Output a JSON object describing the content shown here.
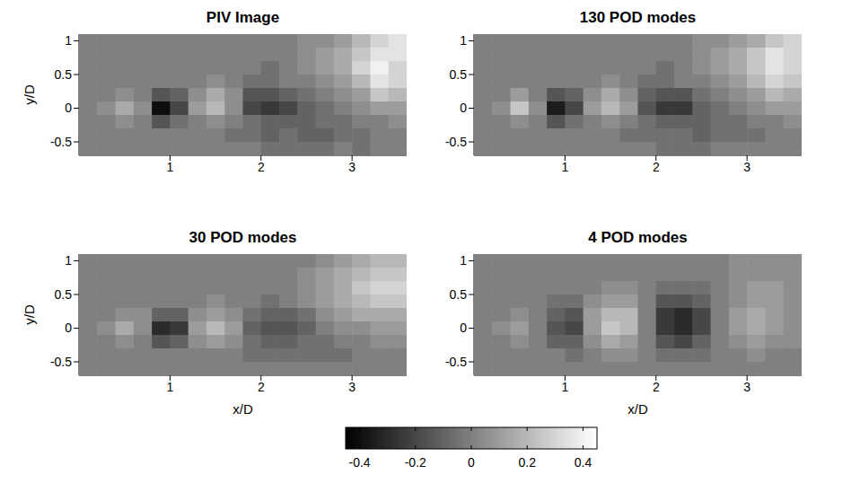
{
  "chart_data": [
    {
      "type": "heatmap",
      "title": "PIV Image",
      "ylabel": "y/D",
      "x": [
        0.1,
        0.3,
        0.5,
        0.7,
        0.9,
        1.1,
        1.3,
        1.5,
        1.7,
        1.9,
        2.1,
        2.3,
        2.5,
        2.7,
        2.9,
        3.1,
        3.3,
        3.5
      ],
      "y": [
        1.0,
        0.8,
        0.6,
        0.4,
        0.2,
        0.0,
        -0.2,
        -0.4,
        -0.6
      ],
      "cells": [
        [
          0,
          0,
          0,
          0,
          0,
          0,
          0,
          0,
          0,
          0,
          0,
          0,
          0.05,
          0.05,
          0.1,
          0.2,
          0.3,
          0.35
        ],
        [
          0,
          0,
          0,
          0,
          0,
          0,
          0,
          0,
          0,
          0,
          0,
          0,
          0.05,
          0.1,
          0.15,
          0.25,
          0.35,
          0.35
        ],
        [
          0,
          0,
          0,
          0,
          0,
          0,
          0,
          0,
          0,
          0,
          -0.05,
          0,
          0.05,
          0.1,
          0.15,
          0.3,
          0.4,
          0.3
        ],
        [
          0,
          0,
          0,
          0,
          0,
          0,
          0,
          0.05,
          0,
          -0.05,
          -0.05,
          0,
          0,
          0.05,
          0.1,
          0.2,
          0.35,
          0.3
        ],
        [
          0,
          0,
          0.05,
          0,
          -0.15,
          -0.1,
          0.05,
          0.15,
          0.05,
          -0.15,
          -0.15,
          -0.1,
          -0.05,
          0,
          0.05,
          0.1,
          0.25,
          0.2
        ],
        [
          0,
          0.05,
          0.15,
          0.05,
          -0.4,
          -0.2,
          0.1,
          0.2,
          0.05,
          -0.2,
          -0.25,
          -0.2,
          -0.1,
          -0.05,
          0,
          0.05,
          0.1,
          0.1
        ],
        [
          0,
          0,
          0.05,
          0,
          -0.15,
          -0.05,
          0,
          0.05,
          0,
          -0.05,
          -0.1,
          -0.1,
          -0.1,
          -0.05,
          -0.05,
          0,
          0,
          0.05
        ],
        [
          0,
          0,
          0,
          0,
          0,
          0,
          0,
          0,
          -0.05,
          -0.05,
          -0.1,
          -0.05,
          -0.1,
          -0.1,
          -0.05,
          -0.05,
          0,
          0
        ],
        [
          0,
          0,
          0,
          0,
          0,
          0,
          0,
          0,
          0,
          0,
          -0.05,
          -0.05,
          -0.05,
          -0.05,
          0,
          -0.05,
          0,
          0
        ]
      ],
      "xlim": [
        0,
        3.6
      ],
      "ylim": [
        -0.7,
        1.1
      ],
      "xticks": [
        1,
        2,
        3
      ],
      "yticks": [
        -0.5,
        0,
        0.5,
        1
      ]
    },
    {
      "type": "heatmap",
      "title": "130 POD modes",
      "x": [
        0.1,
        0.3,
        0.5,
        0.7,
        0.9,
        1.1,
        1.3,
        1.5,
        1.7,
        1.9,
        2.1,
        2.3,
        2.5,
        2.7,
        2.9,
        3.1,
        3.3,
        3.5
      ],
      "y": [
        1.0,
        0.8,
        0.6,
        0.4,
        0.2,
        0.0,
        -0.2,
        -0.4,
        -0.6
      ],
      "cells": [
        [
          0,
          0,
          0,
          0,
          0,
          0,
          0,
          0,
          0,
          0,
          0,
          0,
          0.05,
          0.05,
          0.1,
          0.15,
          0.25,
          0.3
        ],
        [
          0,
          0,
          0,
          0,
          0,
          0,
          0,
          0,
          0,
          0,
          0,
          0,
          0.05,
          0.1,
          0.15,
          0.25,
          0.35,
          0.3
        ],
        [
          0,
          0,
          0,
          0,
          0,
          0,
          0,
          0,
          0,
          0,
          -0.05,
          0,
          0.05,
          0.1,
          0.15,
          0.25,
          0.35,
          0.3
        ],
        [
          0,
          0,
          0,
          0,
          0,
          0,
          0,
          0.05,
          0,
          -0.05,
          -0.05,
          0,
          0,
          0.05,
          0.1,
          0.2,
          0.3,
          0.25
        ],
        [
          0,
          0,
          0.1,
          0,
          -0.15,
          -0.1,
          0.05,
          0.15,
          0.05,
          -0.1,
          -0.15,
          -0.15,
          -0.05,
          0,
          0.05,
          0.1,
          0.2,
          0.15
        ],
        [
          0,
          0.05,
          0.25,
          0.05,
          -0.35,
          -0.2,
          0.1,
          0.2,
          0.1,
          -0.15,
          -0.25,
          -0.25,
          -0.1,
          -0.05,
          0,
          0.05,
          0.1,
          0.1
        ],
        [
          0,
          0,
          0.05,
          0,
          -0.15,
          -0.05,
          0,
          0.05,
          0,
          -0.05,
          -0.1,
          -0.1,
          -0.1,
          -0.05,
          -0.05,
          0,
          0,
          0.05
        ],
        [
          0,
          0,
          0,
          0,
          0,
          0,
          0,
          0,
          -0.05,
          -0.05,
          -0.05,
          -0.05,
          -0.1,
          -0.05,
          -0.05,
          -0.05,
          0,
          0
        ],
        [
          0,
          0,
          0,
          0,
          0,
          0,
          0,
          0,
          0,
          0,
          -0.05,
          -0.05,
          -0.05,
          0,
          0,
          0,
          0,
          0
        ]
      ],
      "xlim": [
        0,
        3.6
      ],
      "ylim": [
        -0.7,
        1.1
      ],
      "xticks": [
        1,
        2,
        3
      ],
      "yticks": [
        -0.5,
        0,
        0.5,
        1
      ]
    },
    {
      "type": "heatmap",
      "title": "30 POD modes",
      "xlabel": "x/D",
      "ylabel": "y/D",
      "x": [
        0.1,
        0.3,
        0.5,
        0.7,
        0.9,
        1.1,
        1.3,
        1.5,
        1.7,
        1.9,
        2.1,
        2.3,
        2.5,
        2.7,
        2.9,
        3.1,
        3.3,
        3.5
      ],
      "y": [
        1.0,
        0.8,
        0.6,
        0.4,
        0.2,
        0.0,
        -0.2,
        -0.4,
        -0.6
      ],
      "cells": [
        [
          0,
          0,
          0,
          0,
          0,
          0,
          0,
          0,
          0,
          0,
          0,
          0,
          0,
          0.05,
          0.1,
          0.15,
          0.2,
          0.2
        ],
        [
          0,
          0,
          0,
          0,
          0,
          0,
          0,
          0,
          0,
          0,
          0,
          0,
          0.05,
          0.1,
          0.15,
          0.2,
          0.25,
          0.25
        ],
        [
          0,
          0,
          0,
          0,
          0,
          0,
          0,
          0,
          0,
          0,
          0,
          0,
          0.05,
          0.1,
          0.15,
          0.25,
          0.3,
          0.3
        ],
        [
          0,
          0,
          0,
          0,
          0,
          0,
          0,
          0.05,
          0,
          0,
          -0.05,
          0,
          0.05,
          0.1,
          0.15,
          0.2,
          0.25,
          0.25
        ],
        [
          0,
          0,
          0.05,
          0.05,
          -0.1,
          -0.1,
          0.05,
          0.1,
          0.05,
          -0.05,
          -0.1,
          -0.1,
          -0.05,
          0.05,
          0.1,
          0.15,
          0.15,
          0.15
        ],
        [
          0,
          0.05,
          0.15,
          0.05,
          -0.3,
          -0.25,
          0.1,
          0.2,
          0.1,
          -0.1,
          -0.15,
          -0.15,
          -0.1,
          0,
          0.05,
          0.05,
          0.1,
          0.1
        ],
        [
          0,
          0,
          0.05,
          0,
          -0.15,
          -0.1,
          0.05,
          0.1,
          0.05,
          -0.05,
          -0.1,
          -0.1,
          -0.05,
          -0.05,
          0,
          0,
          0.05,
          0.05
        ],
        [
          0,
          0,
          0,
          0,
          0,
          0,
          0,
          0,
          0,
          -0.05,
          -0.05,
          -0.05,
          -0.05,
          -0.05,
          -0.05,
          0,
          0,
          0
        ],
        [
          0,
          0,
          0,
          0,
          0,
          0,
          0,
          0,
          0,
          0,
          0,
          0,
          0,
          0,
          0,
          0,
          0,
          0
        ]
      ],
      "xlim": [
        0,
        3.6
      ],
      "ylim": [
        -0.7,
        1.1
      ],
      "xticks": [
        1,
        2,
        3
      ],
      "yticks": [
        -0.5,
        0,
        0.5,
        1
      ]
    },
    {
      "type": "heatmap",
      "title": "4 POD modes",
      "xlabel": "x/D",
      "x": [
        0.1,
        0.3,
        0.5,
        0.7,
        0.9,
        1.1,
        1.3,
        1.5,
        1.7,
        1.9,
        2.1,
        2.3,
        2.5,
        2.7,
        2.9,
        3.1,
        3.3,
        3.5
      ],
      "y": [
        1.0,
        0.8,
        0.6,
        0.4,
        0.2,
        0.0,
        -0.2,
        -0.4,
        -0.6
      ],
      "cells": [
        [
          0,
          0,
          0,
          0,
          0,
          0,
          0,
          0,
          0,
          0,
          0,
          0,
          0,
          0,
          0.05,
          0.05,
          0.05,
          0.05
        ],
        [
          0,
          0,
          0,
          0,
          0,
          0,
          0,
          0,
          0,
          0,
          0,
          0,
          0,
          0,
          0.05,
          0.05,
          0.05,
          0.05
        ],
        [
          0,
          0,
          0,
          0,
          0,
          0,
          0,
          0.05,
          0.05,
          0,
          -0.05,
          -0.05,
          -0.05,
          0,
          0.05,
          0.1,
          0.1,
          0.05
        ],
        [
          0,
          0,
          0,
          0,
          -0.05,
          -0.05,
          0.05,
          0.1,
          0.1,
          0,
          -0.15,
          -0.15,
          -0.1,
          0,
          0.05,
          0.1,
          0.1,
          0.05
        ],
        [
          0,
          0,
          0.05,
          0,
          -0.1,
          -0.15,
          0.1,
          0.2,
          0.2,
          0,
          -0.25,
          -0.3,
          -0.2,
          0,
          0.1,
          0.15,
          0.1,
          0.05
        ],
        [
          0,
          0.05,
          0.1,
          0,
          -0.15,
          -0.2,
          0.1,
          0.25,
          0.2,
          0,
          -0.25,
          -0.3,
          -0.2,
          0,
          0.1,
          0.15,
          0.1,
          0.05
        ],
        [
          0,
          0,
          0.05,
          0,
          -0.1,
          -0.1,
          0.05,
          0.15,
          0.1,
          0,
          -0.15,
          -0.2,
          -0.1,
          0,
          0.05,
          0.1,
          0.05,
          0.05
        ],
        [
          0,
          0,
          0,
          0,
          0,
          -0.05,
          0,
          0.05,
          0.05,
          0,
          -0.05,
          -0.05,
          -0.05,
          0,
          0,
          0.05,
          0,
          0
        ],
        [
          0,
          0,
          0,
          0,
          0,
          0,
          0,
          0,
          0,
          0,
          0,
          0,
          0,
          0,
          0,
          0,
          0,
          0
        ]
      ],
      "xlim": [
        0,
        3.6
      ],
      "ylim": [
        -0.7,
        1.1
      ],
      "xticks": [
        1,
        2,
        3
      ],
      "yticks": [
        -0.5,
        0,
        0.5,
        1
      ]
    }
  ],
  "colorbar": {
    "range": [
      -0.45,
      0.45
    ],
    "ticks": [
      -0.4,
      -0.2,
      0,
      0.2,
      0.4
    ]
  }
}
